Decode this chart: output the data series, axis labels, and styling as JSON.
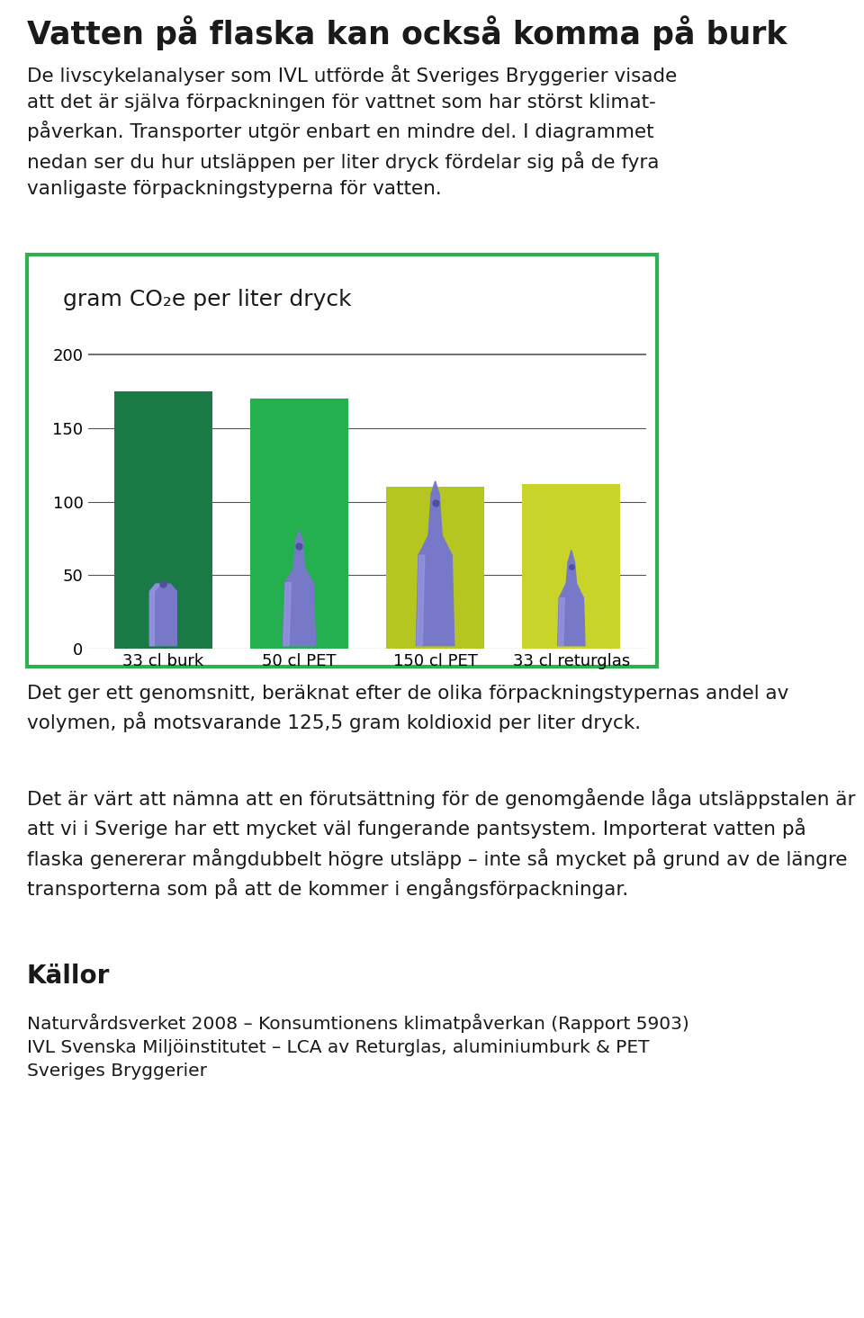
{
  "title": "Vatten på flaska kan också komma på burk",
  "intro_text": "De livscykelanalyser som IVL utförde åt Sveriges Bryggerier visade\natt det är själva förpackningen för vattnet som har störst klimat-\npåverkan. Transporter utgör enbart en mindre del. I diagrammet\nnedan ser du hur utsläppen per liter dryck fördelar sig på de fyra\nvanligaste förpackningstyperna för vatten.",
  "chart_title": "gram CO₂e per liter dryck",
  "categories": [
    "33 cl burk",
    "50 cl PET",
    "150 cl PET",
    "33 cl returglas"
  ],
  "values": [
    175,
    170,
    110,
    112
  ],
  "bar_colors": [
    "#1a7a45",
    "#25b050",
    "#b5c620",
    "#c8d42a"
  ],
  "border_color": "#2db050",
  "bg_color": "#ffffff",
  "chart_bg": "#ffffff",
  "yticks": [
    0,
    50,
    100,
    150,
    200
  ],
  "ylim": [
    0,
    210
  ],
  "text_color": "#1a1a1a",
  "grid_color": "#555555",
  "outro_text1": "Det ger ett genomsnitt, beräknat efter de olika förpackningstypernas andel av volymen, på motsvarande 125,5 gram koldioxid per liter dryck.",
  "outro_text2": "Det är värt att nämna att en förutsättning för de genomgående låga utsläppstalen är att vi i Sverige har ett mycket väl fungerande pantsystem. Importerat vatten på flaska genererar mångdubbelt högre utsläpp – inte så mycket på grund av de längre transporterna som på att de kommer i engångsförpackningar.",
  "sources_title": "Källor",
  "sources": "Naturvårdsverket 2008 – Konsumtionens klimatpåverkan (Rapport 5903)\nIVL Svenska Miljöinstitutet – LCA av Returglas, aluminiumburk & PET\nSveriges Bryggerier",
  "bottle_color": "#7878c8",
  "bottle_highlight": "#a0a0e8",
  "bottle_shadow": "#5050a0"
}
